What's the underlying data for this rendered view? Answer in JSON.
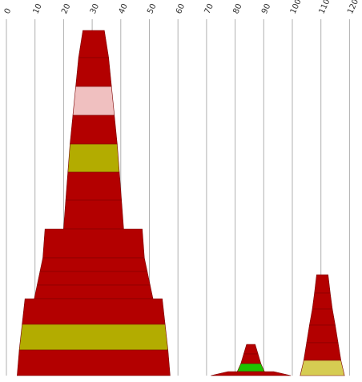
{
  "chart_data": {
    "type": "stacked-trapezoid",
    "x_axis": {
      "ticks": [
        "0",
        "10",
        "20",
        "30",
        "40",
        "50",
        "60",
        "70",
        "80",
        "90",
        "100",
        "110",
        "120"
      ],
      "range": [
        0,
        120
      ],
      "grid": true
    },
    "colors": {
      "red": "#b30000",
      "pink": "#f0c0c0",
      "olive": "#b3ac00",
      "green": "#1fc400",
      "khaki": "#d6cc52"
    },
    "stacks": [
      {
        "center": 30.5,
        "segments": [
          {
            "top_w": 7.5,
            "bottom_w": 10.5,
            "color": "red"
          },
          {
            "top_w": 10.5,
            "bottom_w": 12.5,
            "color": "red"
          },
          {
            "top_w": 12.5,
            "bottom_w": 14.5,
            "color": "pink"
          },
          {
            "top_w": 14.5,
            "bottom_w": 16.5,
            "color": "red"
          },
          {
            "top_w": 16.5,
            "bottom_w": 18.0,
            "color": "olive"
          },
          {
            "top_w": 18.0,
            "bottom_w": 19.5,
            "color": "red"
          },
          {
            "top_w": 19.5,
            "bottom_w": 21.0,
            "color": "red"
          },
          {
            "top_w": 34.0,
            "bottom_w": 35.5,
            "color": "red"
          },
          {
            "top_w": 35.5,
            "bottom_w": 37.5,
            "color": "red"
          },
          {
            "top_w": 37.5,
            "bottom_w": 39.5,
            "color": "red"
          },
          {
            "top_w": 39.5,
            "bottom_w": 41.5,
            "color": "red"
          },
          {
            "top_w": 48.0,
            "bottom_w": 50.0,
            "color": "red"
          },
          {
            "top_w": 50.0,
            "bottom_w": 52.0,
            "color": "olive"
          },
          {
            "top_w": 52.0,
            "bottom_w": 53.5,
            "color": "red"
          }
        ]
      },
      {
        "center": 85.5,
        "segments": [
          {
            "top_w": 3.0,
            "bottom_w": 5.0,
            "color": "red"
          },
          {
            "top_w": 5.0,
            "bottom_w": 7.0,
            "color": "red"
          },
          {
            "top_w": 7.0,
            "bottom_w": 9.5,
            "color": "green"
          },
          {
            "top_w": 16.0,
            "bottom_w": 28.0,
            "color": "red"
          }
        ]
      },
      {
        "center": 110.5,
        "segments": [
          {
            "top_w": 4.0,
            "bottom_w": 5.5,
            "color": "red"
          },
          {
            "top_w": 5.5,
            "bottom_w": 7.0,
            "color": "red"
          },
          {
            "top_w": 7.0,
            "bottom_w": 9.0,
            "color": "red"
          },
          {
            "top_w": 9.0,
            "bottom_w": 11.0,
            "color": "red"
          },
          {
            "top_w": 11.0,
            "bottom_w": 13.0,
            "color": "red"
          },
          {
            "top_w": 13.0,
            "bottom_w": 15.5,
            "color": "khaki"
          }
        ]
      }
    ]
  }
}
